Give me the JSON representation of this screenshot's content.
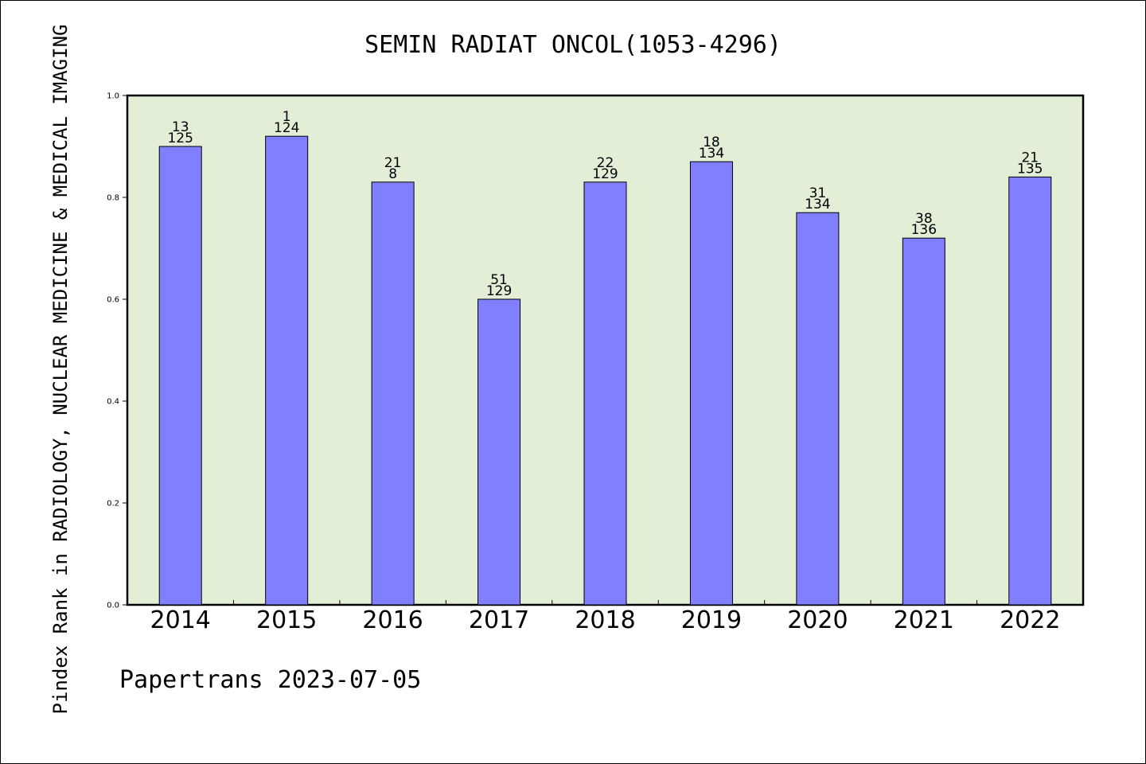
{
  "chart_data": {
    "type": "bar",
    "title": "SEMIN RADIAT ONCOL(1053-4296)",
    "ylabel": "Pindex Rank in RADIOLOGY, NUCLEAR MEDICINE & MEDICAL IMAGING",
    "xlabel": "",
    "categories": [
      "2014",
      "2015",
      "2016",
      "2017",
      "2018",
      "2019",
      "2020",
      "2021",
      "2022"
    ],
    "values": [
      0.9,
      0.92,
      0.83,
      0.6,
      0.83,
      0.87,
      0.77,
      0.72,
      0.84
    ],
    "rank_labels": [
      "13",
      "1",
      "21",
      "51",
      "22",
      "18",
      "31",
      "38",
      "21"
    ],
    "total_labels": [
      "125",
      "124",
      "8",
      "129",
      "129",
      "134",
      "134",
      "136",
      "135"
    ],
    "ylim": [
      0,
      1.0
    ],
    "yticks": [
      "0.0",
      "0.2",
      "0.4",
      "0.6",
      "0.8",
      "1.0"
    ],
    "grid": false,
    "footer": "Papertrans 2023-07-05",
    "colors": {
      "plot_background": "#e2efd6",
      "bar_fill": "#8080ff",
      "bar_stroke": "#000000"
    }
  }
}
